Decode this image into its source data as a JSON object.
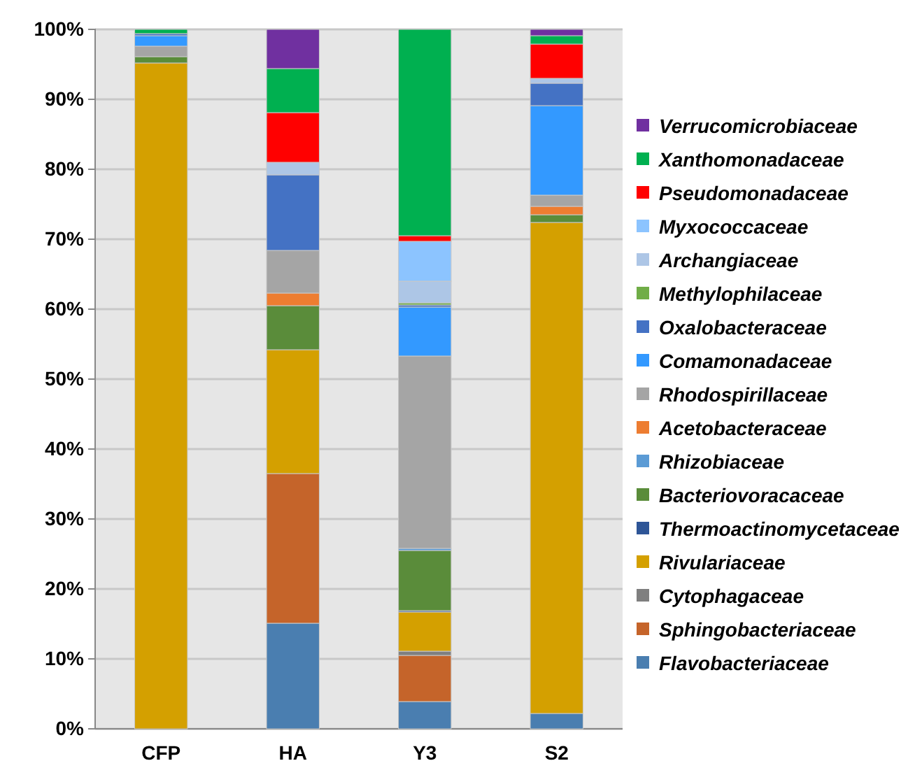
{
  "chart_data": {
    "type": "bar",
    "stacked": true,
    "categories": [
      "CFP",
      "HA",
      "Y3",
      "S2"
    ],
    "ylim": [
      0,
      100
    ],
    "yticks": [
      {
        "value": 0,
        "label": "0%"
      },
      {
        "value": 10,
        "label": "10%"
      },
      {
        "value": 20,
        "label": "20%"
      },
      {
        "value": 30,
        "label": "30%"
      },
      {
        "value": 40,
        "label": "40%"
      },
      {
        "value": 50,
        "label": "50%"
      },
      {
        "value": 60,
        "label": "60%"
      },
      {
        "value": 70,
        "label": "70%"
      },
      {
        "value": 80,
        "label": "80%"
      },
      {
        "value": 90,
        "label": "90%"
      },
      {
        "value": 100,
        "label": "100%"
      }
    ],
    "grid": "y",
    "legend": "right",
    "series": [
      {
        "name": "Flavobacteriaceae",
        "color": "#4a7eb0",
        "values": [
          0,
          15.1,
          3.9,
          2.2
        ]
      },
      {
        "name": "Sphingobacteriaceae",
        "color": "#c5642a",
        "values": [
          0,
          21.4,
          6.6,
          0
        ]
      },
      {
        "name": "Cytophagaceae",
        "color": "#7f7f7f",
        "values": [
          0,
          0,
          0.6,
          0
        ]
      },
      {
        "name": "Rivulariaceae",
        "color": "#d4a000",
        "values": [
          95.2,
          17.7,
          5.6,
          70.2
        ]
      },
      {
        "name": "Thermoactinomycetaceae",
        "color": "#2e5597",
        "values": [
          0,
          0,
          0.2,
          0
        ]
      },
      {
        "name": "Bacteriovoracaceae",
        "color": "#5a8c3a",
        "values": [
          0.9,
          6.3,
          8.6,
          1.1
        ]
      },
      {
        "name": "Rhizobiaceae",
        "color": "#5b9bd5",
        "values": [
          0,
          0,
          0.3,
          0
        ]
      },
      {
        "name": "Acetobacteraceae",
        "color": "#ed7d31",
        "values": [
          0,
          1.8,
          0,
          1.2
        ]
      },
      {
        "name": "Rhodospirillaceae",
        "color": "#a5a5a5",
        "values": [
          1.5,
          6.1,
          27.5,
          1.6
        ]
      },
      {
        "name": "Comamonadaceae",
        "color": "#3399ff",
        "values": [
          1.5,
          0,
          7.0,
          12.8
        ]
      },
      {
        "name": "Oxalobacteraceae",
        "color": "#4472c4",
        "values": [
          0.3,
          10.8,
          0.3,
          3.2
        ]
      },
      {
        "name": "Methylophilaceae",
        "color": "#70ad47",
        "values": [
          0,
          0,
          0.3,
          0
        ]
      },
      {
        "name": "Archangiaceae",
        "color": "#adc6e6",
        "values": [
          0,
          1.8,
          3.1,
          0.7
        ]
      },
      {
        "name": "Myxococcaceae",
        "color": "#8cc4ff",
        "values": [
          0,
          0,
          5.7,
          0
        ]
      },
      {
        "name": "Pseudomonadaceae",
        "color": "#ff0000",
        "values": [
          0,
          7.1,
          0.8,
          4.9
        ]
      },
      {
        "name": "Xanthomonadaceae",
        "color": "#00b050",
        "values": [
          0.6,
          6.3,
          29.5,
          1.2
        ]
      },
      {
        "name": "Verrucomicrobiaceae",
        "color": "#7030a0",
        "values": [
          0,
          5.6,
          0,
          0.9
        ]
      }
    ]
  }
}
